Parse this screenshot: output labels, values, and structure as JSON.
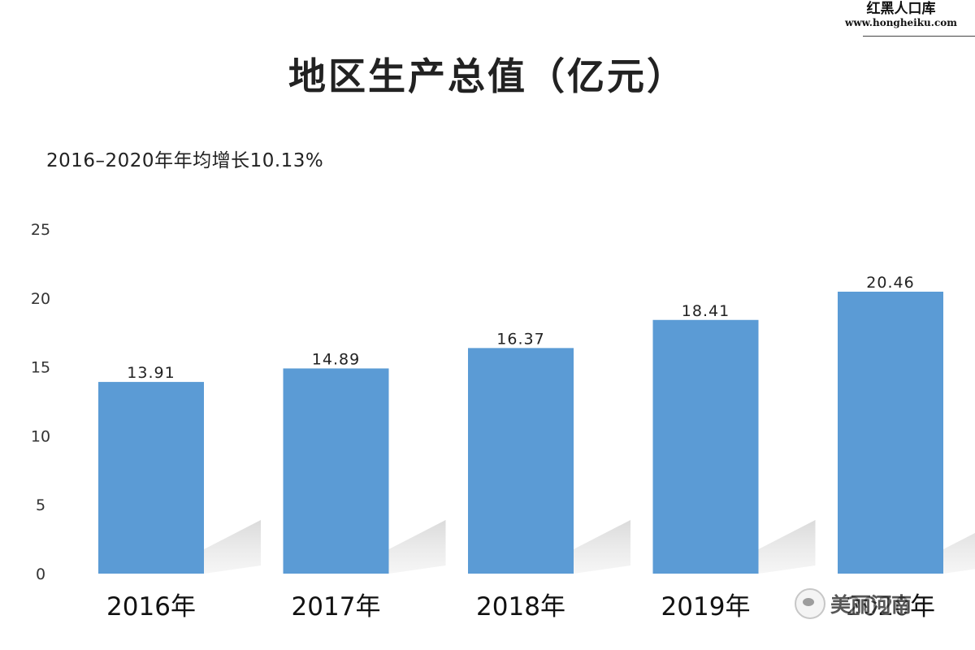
{
  "watermark": {
    "name": "红黑人口库",
    "url": "www.hongheiku.com"
  },
  "chart_data": {
    "type": "bar",
    "title": "地区生产总值（亿元）",
    "subtitle": "2016–2020年年均增长10.13%",
    "categories": [
      "2016年",
      "2017年",
      "2018年",
      "2019年",
      "2020年"
    ],
    "values": [
      13.91,
      14.89,
      16.37,
      18.41,
      20.46
    ],
    "value_labels": [
      "13.91",
      "14.89",
      "16.37",
      "18.41",
      "20.46"
    ],
    "ylim": [
      0,
      25
    ],
    "yticks": [
      0,
      5,
      10,
      15,
      20,
      25
    ],
    "grid": false,
    "legend": "none",
    "bar_color": "#5b9bd5",
    "xlabel": "",
    "ylabel": ""
  },
  "logo_badge": {
    "text": "美丽河南",
    "icon": "wechat-logo-icon"
  }
}
